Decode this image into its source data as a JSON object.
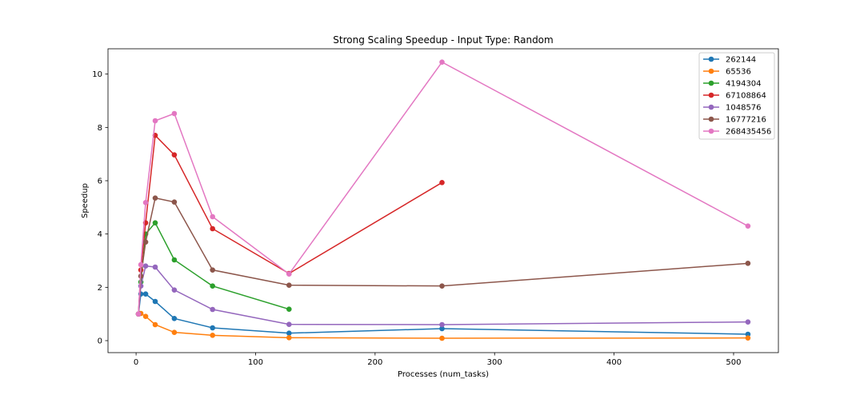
{
  "chart_data": {
    "type": "line",
    "title": "Strong Scaling Speedup - Input Type: Random",
    "xlabel": "Processes (num_tasks)",
    "ylabel": "Speedup",
    "xlim": [
      -23.5,
      537.5
    ],
    "ylim": [
      -0.45,
      10.95
    ],
    "xticks": [
      0,
      100,
      200,
      300,
      400,
      500
    ],
    "yticks": [
      0,
      2,
      4,
      6,
      8,
      10
    ],
    "grid": false,
    "legend_position": "top-right",
    "series": [
      {
        "name": "262144",
        "color": "#1f77b4",
        "x": [
          2,
          4,
          8,
          16,
          32,
          64,
          128,
          256,
          512
        ],
        "y": [
          1.0,
          1.75,
          1.75,
          1.47,
          0.83,
          0.48,
          0.28,
          0.45,
          0.24
        ]
      },
      {
        "name": "65536",
        "color": "#ff7f0e",
        "x": [
          2,
          4,
          8,
          16,
          32,
          64,
          128,
          256,
          512
        ],
        "y": [
          1.0,
          1.02,
          0.91,
          0.6,
          0.31,
          0.2,
          0.11,
          0.09,
          0.1
        ]
      },
      {
        "name": "4194304",
        "color": "#2ca02c",
        "x": [
          2,
          4,
          8,
          16,
          32,
          64,
          128
        ],
        "y": [
          1.0,
          2.2,
          4.0,
          4.42,
          3.03,
          2.05,
          1.18
        ]
      },
      {
        "name": "67108864",
        "color": "#d62728",
        "x": [
          2,
          4,
          8,
          16,
          32,
          64,
          128,
          256
        ],
        "y": [
          1.0,
          2.65,
          4.42,
          7.7,
          6.97,
          4.2,
          2.52,
          5.93
        ]
      },
      {
        "name": "1048576",
        "color": "#9467bd",
        "x": [
          2,
          4,
          8,
          16,
          32,
          64,
          128,
          256,
          512
        ],
        "y": [
          1.0,
          2.05,
          2.8,
          2.76,
          1.9,
          1.17,
          0.61,
          0.6,
          0.7
        ]
      },
      {
        "name": "16777216",
        "color": "#8c564b",
        "x": [
          2,
          4,
          8,
          16,
          32,
          64,
          128,
          256,
          512
        ],
        "y": [
          1.0,
          2.42,
          3.7,
          5.35,
          5.2,
          2.65,
          2.08,
          2.05,
          2.9
        ]
      },
      {
        "name": "268435456",
        "color": "#e377c2",
        "x": [
          2,
          4,
          8,
          16,
          32,
          64,
          128,
          256,
          512
        ],
        "y": [
          1.0,
          2.85,
          5.18,
          8.25,
          8.52,
          4.65,
          2.5,
          10.45,
          4.3
        ]
      }
    ]
  }
}
